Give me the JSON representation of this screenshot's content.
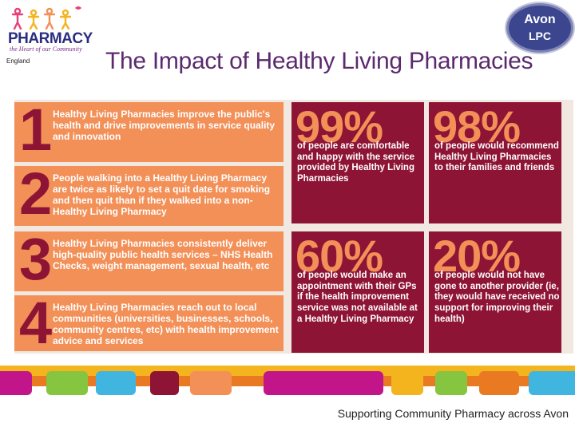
{
  "logo": {
    "word": "PHARMACY",
    "tagline": "the Heart of our Community",
    "sub": "England",
    "colors": {
      "word": "#2a2e7f",
      "tagline": "#7a2e8e"
    }
  },
  "title": "The Impact of Healthy Living Pharmacies",
  "badge": {
    "line1": "Avon",
    "line2": "LPC",
    "color": "#3b468f"
  },
  "items": [
    {
      "number": "1",
      "text": "Healthy Living Pharmacies improve the public's health and drive improvements in service quality and innovation"
    },
    {
      "number": "2",
      "text": "People walking into a Healthy Living Pharmacy are twice as likely to set a quit date for smoking and then quit than if they walked into a non-Healthy Living Pharmacy"
    },
    {
      "number": "3",
      "text": "Healthy Living Pharmacies consistently deliver high-quality public health services – NHS Health Checks, weight management, sexual health, etc"
    },
    {
      "number": "4",
      "text": "Healthy Living Pharmacies reach out to local communities (universities, businesses, schools, community centres, etc) with health improvement advice and services"
    }
  ],
  "stats": [
    {
      "percent": "99%",
      "text": "of people are comfortable and happy with the service provided by Healthy Living Pharmacies"
    },
    {
      "percent": "98%",
      "text": "of people would recommend Healthy Living Pharmacies to their families and friends"
    },
    {
      "percent": "60%",
      "text": "of people would make an appointment with their GPs if the health improvement service was not available at a Healthy Living Pharmacy"
    },
    {
      "percent": "20%",
      "text": "of people would not have gone to another provider (ie, they would have received no support for improving their health)"
    }
  ],
  "colors": {
    "orange": "#f29058",
    "maroon": "#8e1435",
    "yellow": "#f3b41e",
    "purple": "#5b2a6e",
    "navy": "#3b468f",
    "magenta": "#c2158a"
  },
  "footer": "Supporting Community Pharmacy across Avon"
}
